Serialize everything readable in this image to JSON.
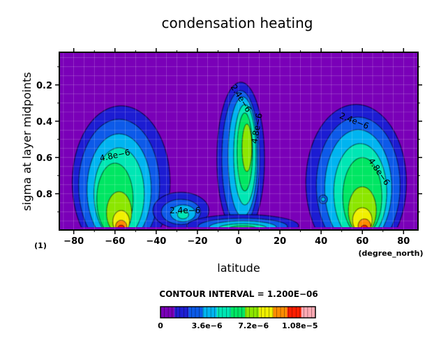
{
  "chart_data": {
    "type": "contour",
    "title": "condensation heating",
    "xlabel": "latitude",
    "ylabel": "sigma at layer midpoints",
    "x_units": "(degree_north)",
    "y_units": "(1)",
    "xlim": [
      -87,
      87
    ],
    "ylim": [
      1.0,
      0.02
    ],
    "y_reversed": true,
    "x_ticks": [
      -80,
      -60,
      -40,
      -20,
      0,
      20,
      40,
      60,
      80
    ],
    "x_tick_labels": [
      "−80",
      "−60",
      "−40",
      "−20",
      "0",
      "20",
      "40",
      "60",
      "80"
    ],
    "y_ticks": [
      0.2,
      0.4,
      0.6,
      0.8
    ],
    "y_tick_labels": [
      "0.2",
      "0.4",
      "0.6",
      "0.8"
    ],
    "grid": true,
    "contour_interval_text": "CONTOUR INTERVAL = 1.200E−06",
    "contour_labels": [
      {
        "text": "4.8e−6",
        "x": -60,
        "y": 0.59,
        "angle": -12
      },
      {
        "text": "2.4e−6",
        "x": -26,
        "y": 0.895,
        "angle": 0
      },
      {
        "text": "2.4e−6",
        "x": 1,
        "y": 0.275,
        "angle": 58
      },
      {
        "text": "4.8e−6",
        "x": 9,
        "y": 0.44,
        "angle": -80
      },
      {
        "text": "2.4e−6",
        "x": 56,
        "y": 0.4,
        "angle": 22
      },
      {
        "text": "4.8e−6",
        "x": 68,
        "y": 0.68,
        "angle": 55
      }
    ],
    "colorbar": {
      "levels": [
        0,
        1.2e-06,
        2.4e-06,
        3.6e-06,
        4.8e-06,
        6e-06,
        7.2e-06,
        8.4e-06,
        9.6e-06,
        1.08e-05,
        1.2e-05
      ],
      "colors": [
        "#7a00b8",
        "#1e1ed2",
        "#0a5ae8",
        "#00b4f0",
        "#00e6b4",
        "#00e664",
        "#8ce600",
        "#f0f000",
        "#ff8c00",
        "#ff1e00",
        "#ffaab4"
      ],
      "tick_labels": [
        "0",
        "3.6e−6",
        "7.2e−6",
        "1.08e−5"
      ]
    }
  }
}
